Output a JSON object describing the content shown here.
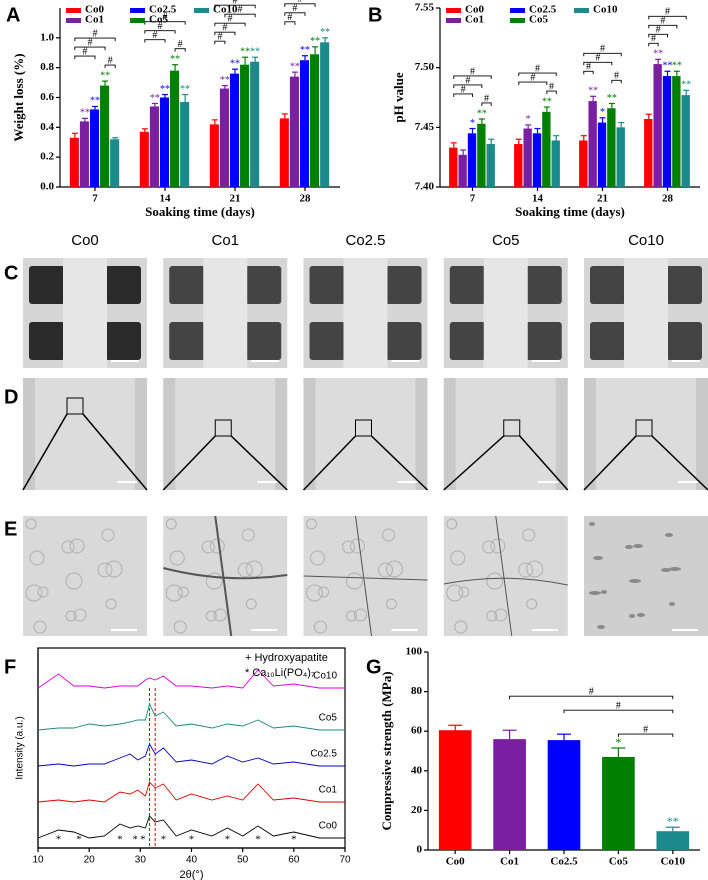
{
  "panels": [
    "A",
    "B",
    "C",
    "D",
    "E",
    "F",
    "G"
  ],
  "micrographs": {
    "columns": [
      "Co0",
      "Co1",
      "Co2.5",
      "Co5",
      "Co10"
    ]
  },
  "chart_data": [
    {
      "type": "bar",
      "xlabel": "Soaking time (days)",
      "ylabel": "Weight loss (%)",
      "categories": [
        "7",
        "14",
        "21",
        "28"
      ],
      "ylim": [
        0,
        1.2
      ],
      "yticks": [
        {
          "value": 0,
          "label": "0.0"
        },
        0.2,
        0.4,
        0.6,
        0.8,
        {
          "value": 1,
          "label": "1.0"
        }
      ],
      "series": [
        {
          "name": "Co0",
          "color": "#ff0000",
          "values": [
            0.33,
            0.37,
            0.42,
            0.46
          ],
          "errors": [
            0.03,
            0.02,
            0.03,
            0.03
          ],
          "sig_labels": [
            null,
            null,
            null,
            null
          ]
        },
        {
          "name": "Co1",
          "color": "#7b1fa2",
          "values": [
            0.44,
            0.54,
            0.66,
            0.74
          ],
          "errors": [
            0.02,
            0.02,
            0.02,
            0.03
          ],
          "sig_labels": [
            "**",
            "**",
            "**",
            "**"
          ]
        },
        {
          "name": "Co2.5",
          "color": "#0000ff",
          "values": [
            0.52,
            0.6,
            0.76,
            0.85
          ],
          "errors": [
            0.02,
            0.02,
            0.03,
            0.03
          ],
          "sig_labels": [
            "**",
            "**",
            "**",
            "**"
          ]
        },
        {
          "name": "Co5",
          "color": "#008000",
          "values": [
            0.68,
            0.78,
            0.82,
            0.89
          ],
          "errors": [
            0.03,
            0.04,
            0.05,
            0.05
          ],
          "sig_labels": [
            "**",
            "**",
            "**",
            "**"
          ]
        },
        {
          "name": "Co10",
          "color": "#1a8a8a",
          "values": [
            0.32,
            0.57,
            0.84,
            0.97
          ],
          "errors": [
            0.01,
            0.05,
            0.03,
            0.03
          ],
          "sig_labels": [
            null,
            "**",
            "**",
            "**"
          ]
        }
      ],
      "brackets": [
        {
          "label": "#",
          "category": 0,
          "from": 3,
          "to": 4
        },
        {
          "label": "#",
          "category": 0,
          "from": 0,
          "to": 2
        },
        {
          "label": "#",
          "category": 0,
          "from": 0,
          "to": 3
        },
        {
          "label": "#",
          "category": 0,
          "from": 0,
          "to": 4
        },
        {
          "label": "#",
          "category": 1,
          "from": 3,
          "to": 4
        },
        {
          "label": "#",
          "category": 1,
          "from": 0,
          "to": 2
        },
        {
          "label": "#",
          "category": 1,
          "from": 0,
          "to": 3
        },
        {
          "label": "#",
          "category": 1,
          "from": 0,
          "to": 4
        },
        {
          "label": "#",
          "category": 2,
          "from": 0,
          "to": 1
        },
        {
          "label": "#",
          "category": 2,
          "from": 0,
          "to": 2
        },
        {
          "label": "#",
          "category": 2,
          "from": 0,
          "to": 3
        },
        {
          "label": "#",
          "category": 2,
          "from": 1,
          "to": 4
        },
        {
          "label": "#",
          "category": 2,
          "from": 0,
          "to": 4
        },
        {
          "label": "#",
          "category": 3,
          "from": 0,
          "to": 1
        },
        {
          "label": "#",
          "category": 3,
          "from": 0,
          "to": 2
        },
        {
          "label": "#",
          "category": 3,
          "from": 0,
          "to": 3
        },
        {
          "label": "#",
          "category": 3,
          "from": 1,
          "to": 4
        },
        {
          "label": "#",
          "category": 3,
          "from": 0,
          "to": 4
        }
      ]
    },
    {
      "type": "bar",
      "xlabel": "Soaking time (days)",
      "ylabel": "pH value",
      "categories": [
        "7",
        "14",
        "21",
        "28"
      ],
      "ylim": [
        7.4,
        7.55
      ],
      "yticks": [
        {
          "value": 7.4,
          "label": "7.40"
        },
        7.45,
        {
          "value": 7.5,
          "label": "7.50"
        },
        7.55
      ],
      "series": [
        {
          "name": "Co0",
          "color": "#ff0000",
          "values": [
            7.433,
            7.436,
            7.439,
            7.457
          ],
          "errors": [
            0.004,
            0.004,
            0.004,
            0.004
          ],
          "sig_labels": [
            null,
            null,
            null,
            null
          ]
        },
        {
          "name": "Co1",
          "color": "#7b1fa2",
          "values": [
            7.427,
            7.449,
            7.472,
            7.503
          ],
          "errors": [
            0.004,
            0.003,
            0.004,
            0.004
          ],
          "sig_labels": [
            null,
            "*",
            "**",
            "**"
          ]
        },
        {
          "name": "Co2.5",
          "color": "#0000ff",
          "values": [
            7.445,
            7.445,
            7.454,
            7.493
          ],
          "errors": [
            0.004,
            0.004,
            0.004,
            0.004
          ],
          "sig_labels": [
            "*",
            null,
            "*",
            "**"
          ]
        },
        {
          "name": "Co5",
          "color": "#008000",
          "values": [
            7.453,
            7.463,
            7.466,
            7.493
          ],
          "errors": [
            0.004,
            0.004,
            0.004,
            0.004
          ],
          "sig_labels": [
            "**",
            "**",
            "**",
            "**"
          ]
        },
        {
          "name": "Co10",
          "color": "#1a8a8a",
          "values": [
            7.436,
            7.439,
            7.45,
            7.477
          ],
          "errors": [
            0.004,
            0.004,
            0.004,
            0.004
          ],
          "sig_labels": [
            null,
            null,
            null,
            "**"
          ]
        }
      ],
      "brackets": [
        {
          "label": "#",
          "category": 0,
          "from": 3,
          "to": 4
        },
        {
          "label": "#",
          "category": 0,
          "from": 0,
          "to": 2
        },
        {
          "label": "#",
          "category": 0,
          "from": 0,
          "to": 3
        },
        {
          "label": "#",
          "category": 0,
          "from": 0,
          "to": 4
        },
        {
          "label": "#",
          "category": 1,
          "from": 3,
          "to": 4
        },
        {
          "label": "#",
          "category": 1,
          "from": 0,
          "to": 3
        },
        {
          "label": "#",
          "category": 1,
          "from": 0,
          "to": 4
        },
        {
          "label": "#",
          "category": 2,
          "from": 3,
          "to": 4
        },
        {
          "label": "#",
          "category": 2,
          "from": 0,
          "to": 1
        },
        {
          "label": "#",
          "category": 2,
          "from": 0,
          "to": 3
        },
        {
          "label": "#",
          "category": 2,
          "from": 0,
          "to": 4
        },
        {
          "label": "#",
          "category": 3,
          "from": 0,
          "to": 1
        },
        {
          "label": "#",
          "category": 3,
          "from": 0,
          "to": 2
        },
        {
          "label": "#",
          "category": 3,
          "from": 0,
          "to": 3
        },
        {
          "label": "#",
          "category": 3,
          "from": 0,
          "to": 4
        }
      ]
    },
    {
      "type": "line",
      "xlabel": "2θ(°)",
      "ylabel": "Intensity (a.u.)",
      "legend_items": [
        "+ Hydroxyapatite",
        "* Ca₁₀Li(PO₄)₇"
      ],
      "xlim": [
        10,
        70
      ],
      "xticks": [
        10,
        20,
        30,
        40,
        50,
        60,
        70
      ],
      "ylim": [
        0,
        100
      ],
      "x": [
        10,
        14,
        17,
        20,
        23,
        26,
        28,
        29.5,
        31,
        31.8,
        32.9,
        34.5,
        37,
        40,
        44,
        47,
        50,
        53,
        56,
        60,
        65,
        70
      ],
      "reference_lines": [
        31.8,
        32.9
      ],
      "star_markers": {
        "label": "*",
        "x": [
          14,
          18,
          26,
          29,
          30.5,
          34.5,
          40,
          47,
          53,
          60
        ]
      },
      "series": [
        {
          "name": "Co0",
          "color": "#000000",
          "values": [
            5,
            9,
            8,
            5,
            6,
            12,
            10,
            11,
            10,
            16,
            13,
            14,
            6,
            9,
            6,
            10,
            6,
            11,
            6,
            8,
            5,
            5
          ]
        },
        {
          "name": "Co1",
          "color": "#e00000",
          "values": [
            23,
            24,
            23,
            24,
            23,
            28,
            27,
            29,
            26,
            33,
            30,
            32,
            24,
            27,
            24,
            26,
            24,
            32,
            24,
            25,
            23,
            23
          ]
        },
        {
          "name": "Co2.5",
          "color": "#0000cc",
          "values": [
            41,
            42,
            41,
            42,
            42,
            45,
            47,
            44,
            46,
            52,
            47,
            50,
            43,
            44,
            42,
            46,
            43,
            45,
            42,
            43,
            41,
            41
          ]
        },
        {
          "name": "Co5",
          "color": "#1a8a7a",
          "values": [
            59,
            60,
            60,
            62,
            61,
            62,
            63,
            64,
            64,
            72,
            66,
            68,
            61,
            62,
            60,
            62,
            61,
            64,
            60,
            61,
            59,
            59
          ]
        },
        {
          "name": "Co10",
          "color": "#e000e0",
          "values": [
            80,
            87,
            81,
            81,
            80,
            81,
            81,
            81,
            84,
            85,
            84,
            86,
            81,
            81,
            80,
            81,
            80,
            89,
            81,
            82,
            80,
            80
          ]
        }
      ]
    },
    {
      "type": "bar",
      "ylabel": "Compressive strength (MPa)",
      "categories": [
        "Co0",
        "Co1",
        "Co2.5",
        "Co5",
        "Co10"
      ],
      "values": [
        60.5,
        56,
        55.5,
        47,
        9.5
      ],
      "errors": [
        2.5,
        4.5,
        3,
        4.5,
        2
      ],
      "colors": [
        "#ff0000",
        "#7b1fa2",
        "#0000ff",
        "#008000",
        "#1a8a8a"
      ],
      "sig_labels": [
        null,
        null,
        null,
        "*",
        "**"
      ],
      "ylim": [
        0,
        100
      ],
      "yticks": [
        0,
        20,
        40,
        60,
        80,
        100
      ],
      "brackets": [
        {
          "label": "#",
          "from": 3,
          "to": 4
        },
        {
          "label": "#",
          "from": 2,
          "to": 4
        },
        {
          "label": "#",
          "from": 1,
          "to": 4
        }
      ]
    }
  ]
}
